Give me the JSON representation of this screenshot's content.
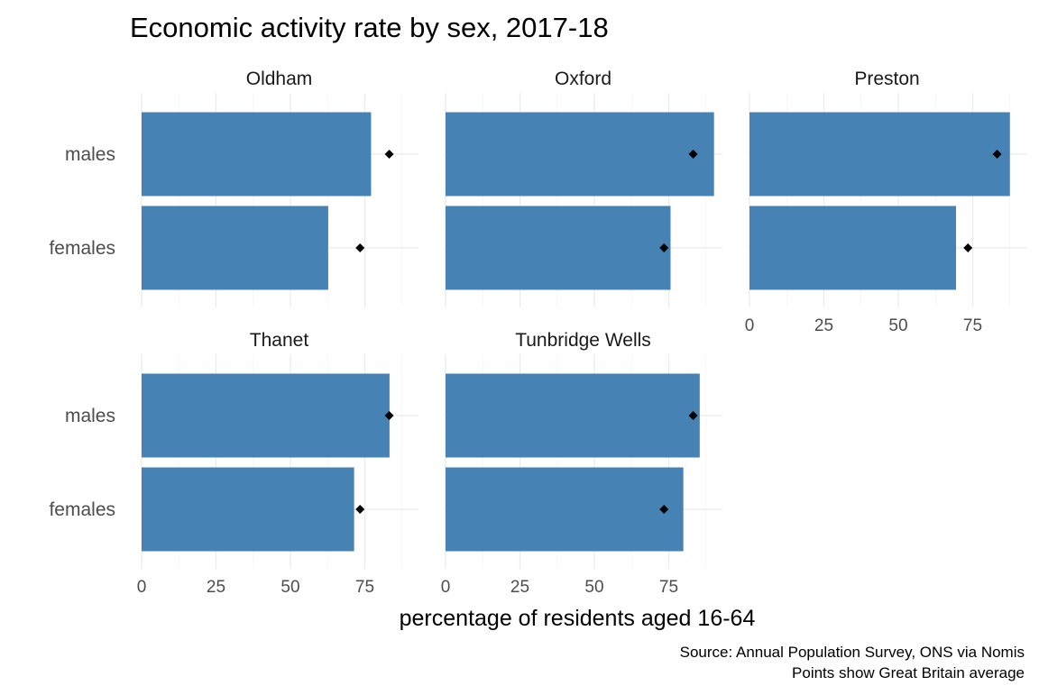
{
  "chart_data": {
    "type": "bar",
    "orientation": "horizontal",
    "faceted": true,
    "title": "Economic activity rate by sex, 2017-18",
    "xlabel": "percentage of residents aged 16-64",
    "ylabel": "",
    "xlim": [
      0,
      90
    ],
    "x_ticks": [
      0,
      25,
      50,
      75
    ],
    "categories": [
      "males",
      "females"
    ],
    "caption_lines": [
      "Source: Annual Population Survey, ONS via Nomis",
      "Points show Great Britain average"
    ],
    "grid": true,
    "colors": {
      "bar": "#4682B4",
      "point": "#000000"
    },
    "gb_average": {
      "males": 83.2,
      "females": 73.4
    },
    "panels": [
      {
        "name": "Oldham",
        "values": {
          "males": 77.1,
          "females": 62.7
        }
      },
      {
        "name": "Oxford",
        "values": {
          "males": 90.2,
          "females": 75.6
        }
      },
      {
        "name": "Preston",
        "values": {
          "males": 87.5,
          "females": 69.4
        }
      },
      {
        "name": "Thanet",
        "values": {
          "males": 83.3,
          "females": 71.4
        }
      },
      {
        "name": "Tunbridge Wells",
        "values": {
          "males": 85.4,
          "females": 79.9
        }
      }
    ]
  }
}
